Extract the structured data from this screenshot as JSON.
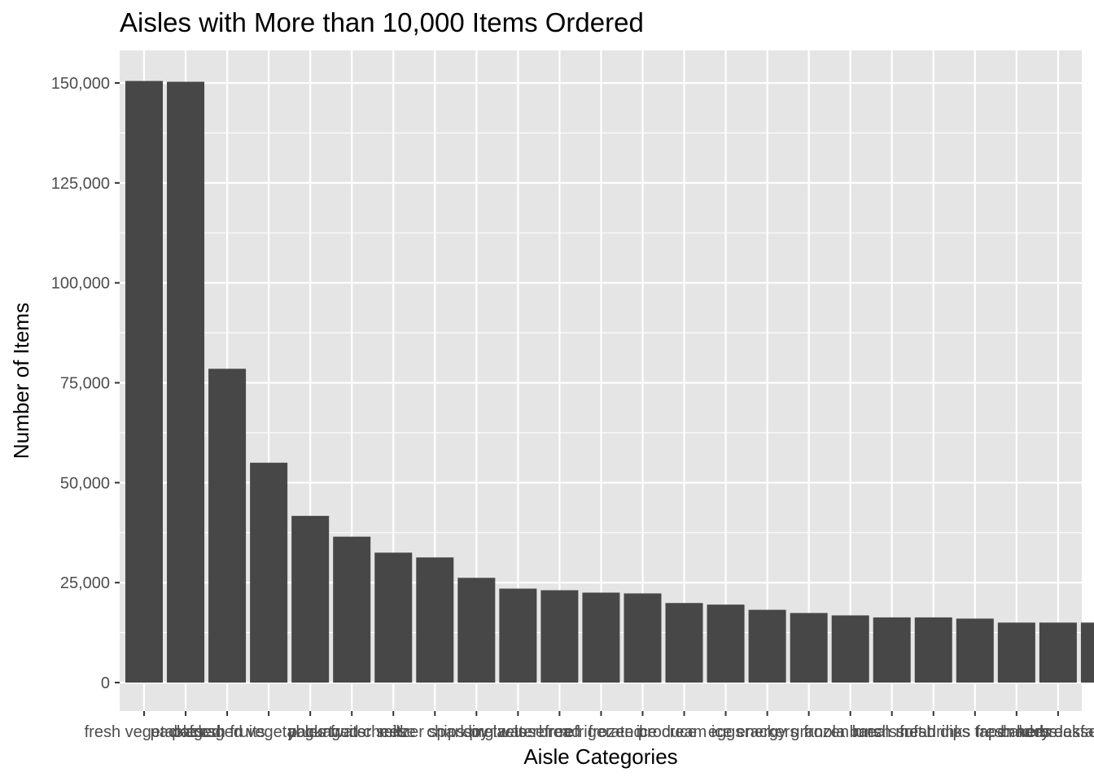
{
  "chart_data": {
    "type": "bar",
    "title": "Aisles with More than 10,000 Items Ordered",
    "xlabel": "Aisle Categories",
    "ylabel": "Number of Items",
    "ylim": [
      0,
      160000
    ],
    "yticks": [
      0,
      25000,
      50000,
      75000,
      100000,
      125000,
      150000
    ],
    "ytick_labels": [
      "0",
      "25,000",
      "50,000",
      "75,000",
      "100,000",
      "125,000",
      "150,000"
    ],
    "grid": true,
    "legend": "none",
    "colors": {
      "bar": "#474747",
      "panel": "#e5e5e5",
      "grid": "#ffffff"
    },
    "categories": [
      "fresh vegetables",
      "packaged",
      "fresh fruits",
      "packaged vegetables fruits",
      "yogurt",
      "packaged cheese",
      "milk",
      "water seltzer sparkling water",
      "chips pretzels",
      "soy lactosefree",
      "bread",
      "refrigerated",
      "frozen produce",
      "ice cream ice",
      "eggs",
      "crackers",
      "energy granola bars",
      "frozen meals",
      "lunch meat",
      "soft drinks",
      "fresh dips tapenades",
      "fresh herbs",
      "bakery desserts",
      "breakfast bakery"
    ],
    "values": [
      150500,
      150300,
      78500,
      55000,
      41700,
      36500,
      32500,
      31300,
      26200,
      23500,
      23100,
      22500,
      22300,
      19900,
      19500,
      18200,
      17400,
      16800,
      16300,
      16300,
      16000,
      15000,
      15000,
      15000
    ]
  }
}
